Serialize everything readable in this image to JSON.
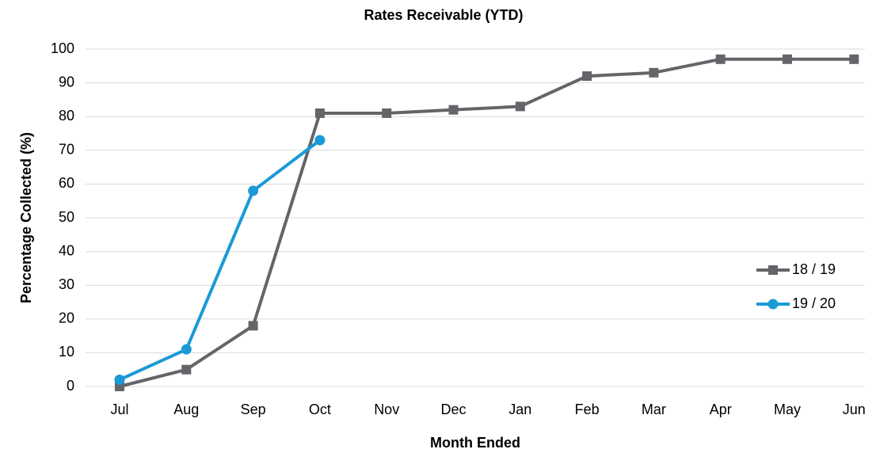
{
  "chart_data": {
    "type": "line",
    "title": "Rates Receivable (YTD)",
    "x_label": "Month Ended",
    "y_label": "Percentage Collected (%)",
    "categories": [
      "Jul",
      "Aug",
      "Sep",
      "Oct",
      "Nov",
      "Dec",
      "Jan",
      "Feb",
      "Mar",
      "Apr",
      "May",
      "Jun"
    ],
    "series": [
      {
        "name": "18 / 19",
        "color": "#636569",
        "marker": "square",
        "values": [
          0,
          5,
          18,
          81,
          81,
          82,
          83,
          92,
          93,
          97,
          97,
          97
        ]
      },
      {
        "name": "19 / 20",
        "color": "#1a9ad6",
        "marker": "circle",
        "values": [
          2,
          11,
          58,
          73,
          null,
          null,
          null,
          null,
          null,
          null,
          null,
          null
        ]
      }
    ],
    "ylim": [
      0,
      100
    ],
    "yticks": [
      0,
      10,
      20,
      30,
      40,
      50,
      60,
      70,
      80,
      90,
      100
    ],
    "grid": true,
    "legend_position": "right"
  }
}
